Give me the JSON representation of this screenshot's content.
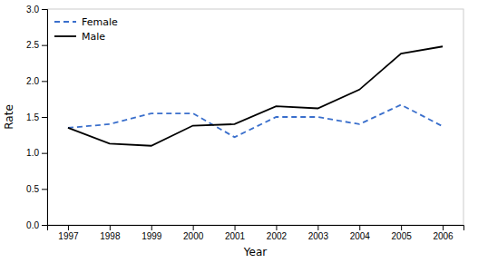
{
  "chart_data": {
    "type": "line",
    "x": [
      1997,
      1998,
      1999,
      2000,
      2001,
      2002,
      2003,
      2004,
      2005,
      2006
    ],
    "series": [
      {
        "name": "Female",
        "color": "#3a6fcc",
        "line_style": "dashed",
        "values": [
          1.35,
          1.4,
          1.55,
          1.55,
          1.22,
          1.5,
          1.5,
          1.4,
          1.67,
          1.37
        ]
      },
      {
        "name": "Male",
        "color": "#000000",
        "line_style": "solid",
        "values": [
          1.35,
          1.13,
          1.1,
          1.38,
          1.4,
          1.65,
          1.62,
          1.88,
          2.38,
          2.48
        ]
      }
    ],
    "xlabel": "Year",
    "ylabel": "Rate",
    "xlim": [
      1996.5,
      2006.5
    ],
    "xticks": [
      1997,
      1998,
      1999,
      2000,
      2001,
      2002,
      2003,
      2004,
      2005,
      2006
    ],
    "ylim": [
      0.0,
      3.0
    ],
    "yticks": [
      {
        "value": 0.0,
        "label": "0.0"
      },
      0.5,
      {
        "value": 1.0,
        "label": "1.0"
      },
      1.5,
      {
        "value": 2.0,
        "label": "2.0"
      },
      2.5,
      {
        "value": 3.0,
        "label": "3.0"
      }
    ],
    "legend": "upper left",
    "grid": false
  }
}
